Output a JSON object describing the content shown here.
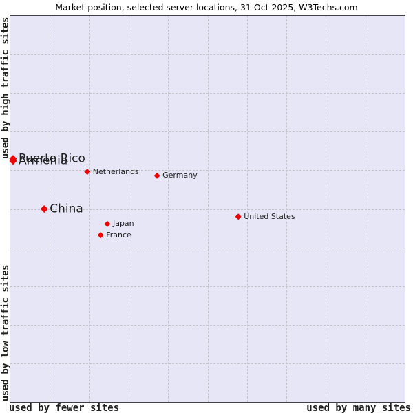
{
  "title": "Market position, selected server locations, 31 Oct 2025, W3Techs.com",
  "axes": {
    "y_top": "used by high traffic sites",
    "y_bottom": "used by low traffic sites",
    "x_left": "used by fewer sites",
    "x_right": "used by many sites"
  },
  "colors": {
    "page_bg": "#ffffff",
    "plot_bg": "#e6e6f7",
    "grid": "#c5c5cd",
    "border": "#40404a",
    "marker": "#ee0000",
    "text": "#1f1f1f",
    "title": "#000000"
  },
  "chart_data": {
    "type": "scatter",
    "title": "Market position, selected server locations, 31 Oct 2025, W3Techs.com",
    "x_axis": {
      "left_label": "used by fewer sites",
      "right_label": "used by many sites",
      "range_pct": [
        0,
        100
      ]
    },
    "y_axis": {
      "top_label": "used by high traffic sites",
      "bottom_label": "used by low traffic sites",
      "range_pct": [
        0,
        100
      ]
    },
    "grid": {
      "cols": 10,
      "rows": 10,
      "style": "dashed"
    },
    "marker_shape": "diamond",
    "legend": "none",
    "points": [
      {
        "label": "Puerto Rico",
        "x_pct": 0.7,
        "y_pct": 37.0,
        "emphasis": "large"
      },
      {
        "label": "Armenia",
        "x_pct": 0.7,
        "y_pct": 37.6,
        "emphasis": "large"
      },
      {
        "label": "Netherlands",
        "x_pct": 19.5,
        "y_pct": 40.4,
        "emphasis": "small"
      },
      {
        "label": "Germany",
        "x_pct": 37.2,
        "y_pct": 41.4,
        "emphasis": "small"
      },
      {
        "label": "China",
        "x_pct": 8.6,
        "y_pct": 50.0,
        "emphasis": "large"
      },
      {
        "label": "Japan",
        "x_pct": 24.6,
        "y_pct": 53.9,
        "emphasis": "small"
      },
      {
        "label": "France",
        "x_pct": 22.9,
        "y_pct": 56.8,
        "emphasis": "small"
      },
      {
        "label": "United States",
        "x_pct": 57.8,
        "y_pct": 52.0,
        "emphasis": "small"
      }
    ]
  }
}
